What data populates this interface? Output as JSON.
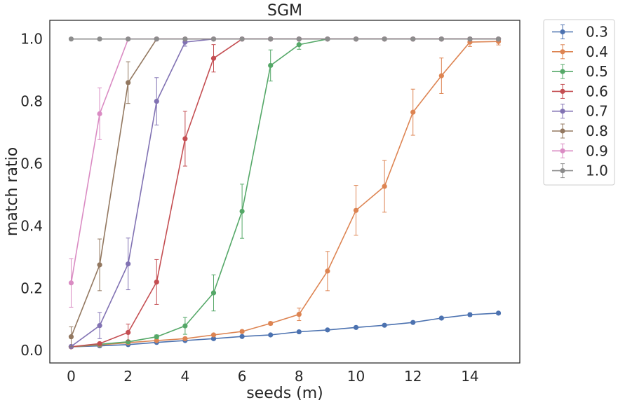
{
  "chart_data": {
    "type": "line",
    "title": "SGM",
    "xlabel": "seeds (m)",
    "ylabel": "match ratio",
    "xlim": [
      -0.75,
      15.75
    ],
    "ylim": [
      -0.04,
      1.06
    ],
    "x_ticks": [
      0,
      2,
      4,
      6,
      8,
      10,
      12,
      14
    ],
    "y_ticks": [
      0.0,
      0.2,
      0.4,
      0.6,
      0.8,
      1.0
    ],
    "x_tick_labels": [
      "0",
      "2",
      "4",
      "6",
      "8",
      "10",
      "12",
      "14"
    ],
    "y_tick_labels": [
      "0.0",
      "0.2",
      "0.4",
      "0.6",
      "0.8",
      "1.0"
    ],
    "grid": false,
    "legend_position": "outside-top-right",
    "x": [
      0,
      1,
      2,
      3,
      4,
      5,
      6,
      7,
      8,
      9,
      10,
      11,
      12,
      13,
      14,
      15
    ],
    "series": [
      {
        "name": "0.3",
        "color": "#4c72b0",
        "values": [
          0.012,
          0.015,
          0.019,
          0.026,
          0.032,
          0.038,
          0.045,
          0.05,
          0.06,
          0.066,
          0.074,
          0.081,
          0.09,
          0.104,
          0.115,
          0.12
        ],
        "errors": [
          0.002,
          0.002,
          0.002,
          0.003,
          0.003,
          0.003,
          0.003,
          0.003,
          0.003,
          0.003,
          0.003,
          0.003,
          0.003,
          0.004,
          0.005,
          0.004
        ]
      },
      {
        "name": "0.4",
        "color": "#dd8452",
        "values": [
          0.012,
          0.018,
          0.025,
          0.032,
          0.038,
          0.05,
          0.061,
          0.087,
          0.116,
          0.255,
          0.45,
          0.527,
          0.765,
          0.882,
          0.99,
          0.992
        ],
        "errors": [
          0.002,
          0.003,
          0.003,
          0.003,
          0.004,
          0.004,
          0.004,
          0.005,
          0.02,
          0.063,
          0.08,
          0.083,
          0.074,
          0.057,
          0.014,
          0.011
        ]
      },
      {
        "name": "0.5",
        "color": "#55a868",
        "values": [
          0.012,
          0.02,
          0.028,
          0.044,
          0.079,
          0.185,
          0.447,
          0.915,
          0.982,
          1.0,
          1.0,
          1.0,
          1.0,
          1.0,
          1.0,
          1.0
        ],
        "errors": [
          0.002,
          0.003,
          0.004,
          0.006,
          0.027,
          0.058,
          0.087,
          0.05,
          0.015,
          0.003,
          0.002,
          0.002,
          0.002,
          0.002,
          0.002,
          0.002
        ]
      },
      {
        "name": "0.6",
        "color": "#c44e52",
        "values": [
          0.012,
          0.022,
          0.058,
          0.22,
          0.68,
          0.938,
          1.0,
          1.0,
          1.0,
          1.0,
          1.0,
          1.0,
          1.0,
          1.0,
          1.0,
          1.0
        ],
        "errors": [
          0.002,
          0.004,
          0.027,
          0.072,
          0.088,
          0.044,
          0.003,
          0.002,
          0.002,
          0.002,
          0.002,
          0.002,
          0.002,
          0.002,
          0.002,
          0.002
        ]
      },
      {
        "name": "0.7",
        "color": "#8172b3",
        "values": [
          0.013,
          0.08,
          0.278,
          0.8,
          0.99,
          1.0,
          1.0,
          1.0,
          1.0,
          1.0,
          1.0,
          1.0,
          1.0,
          1.0,
          1.0,
          1.0
        ],
        "errors": [
          0.004,
          0.042,
          0.083,
          0.076,
          0.013,
          0.002,
          0.002,
          0.002,
          0.002,
          0.002,
          0.002,
          0.002,
          0.002,
          0.002,
          0.002,
          0.002
        ]
      },
      {
        "name": "0.8",
        "color": "#937860",
        "values": [
          0.044,
          0.275,
          0.86,
          1.0,
          1.0,
          1.0,
          1.0,
          1.0,
          1.0,
          1.0,
          1.0,
          1.0,
          1.0,
          1.0,
          1.0,
          1.0
        ],
        "errors": [
          0.032,
          0.083,
          0.067,
          0.003,
          0.002,
          0.002,
          0.002,
          0.002,
          0.002,
          0.002,
          0.002,
          0.002,
          0.002,
          0.002,
          0.002,
          0.002
        ]
      },
      {
        "name": "0.9",
        "color": "#da8bc3",
        "values": [
          0.217,
          0.76,
          1.0,
          1.0,
          1.0,
          1.0,
          1.0,
          1.0,
          1.0,
          1.0,
          1.0,
          1.0,
          1.0,
          1.0,
          1.0,
          1.0
        ],
        "errors": [
          0.078,
          0.083,
          0.003,
          0.002,
          0.002,
          0.002,
          0.002,
          0.002,
          0.002,
          0.002,
          0.002,
          0.002,
          0.002,
          0.002,
          0.002,
          0.002
        ]
      },
      {
        "name": "1.0",
        "color": "#8c8c8c",
        "values": [
          1.0,
          1.0,
          1.0,
          1.0,
          1.0,
          1.0,
          1.0,
          1.0,
          1.0,
          1.0,
          1.0,
          1.0,
          1.0,
          1.0,
          1.0,
          1.0
        ],
        "errors": [
          0.002,
          0.002,
          0.002,
          0.002,
          0.002,
          0.002,
          0.002,
          0.002,
          0.002,
          0.002,
          0.002,
          0.002,
          0.002,
          0.002,
          0.002,
          0.002
        ]
      }
    ]
  }
}
